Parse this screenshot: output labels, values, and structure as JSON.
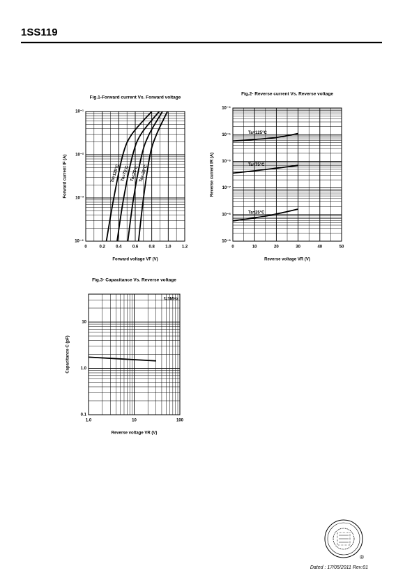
{
  "header": {
    "title": "1SS119"
  },
  "footer": {
    "date": "Dated : 17/05/2011   Rev:01",
    "mark": "®"
  },
  "chart_data": [
    {
      "type": "line",
      "title": "Fig.1-Forward current Vs. Forward voltage",
      "xlabel": "Forward voltage VF  (V)",
      "ylabel": "Forward current IF  (A)",
      "xscale": "linear",
      "yscale": "log",
      "grid": true,
      "xlim": [
        0,
        1.2
      ],
      "xticks": [
        0,
        0.2,
        0.4,
        0.6,
        0.8,
        {
          "value": 1,
          "label": "1.0"
        },
        1.2
      ],
      "ylim": [
        0.0001,
        0.1
      ],
      "yticks": [
        {
          "value": 0.0001,
          "label": "10⁻⁴"
        },
        {
          "value": 0.001,
          "label": "10⁻³"
        },
        {
          "value": 0.01,
          "label": "10⁻²"
        },
        {
          "value": 0.1,
          "label": "10⁻¹"
        }
      ],
      "series": [
        {
          "name": "Ta=125°C",
          "color": "#000000",
          "x": [
            0.25,
            0.34,
            0.45,
            0.56,
            0.8
          ],
          "values": [
            0.0001,
            0.001,
            0.01,
            0.03,
            0.1
          ]
        },
        {
          "name": "Ta=75°C",
          "color": "#000000",
          "x": [
            0.38,
            0.46,
            0.57,
            0.67,
            0.89
          ],
          "values": [
            0.0001,
            0.001,
            0.01,
            0.03,
            0.1
          ]
        },
        {
          "name": "Ta=25°C",
          "color": "#000000",
          "x": [
            0.51,
            0.58,
            0.68,
            0.77,
            0.93
          ],
          "values": [
            0.0001,
            0.001,
            0.01,
            0.03,
            0.1
          ]
        },
        {
          "name": "Ta=-25°C",
          "color": "#000000",
          "x": [
            0.64,
            0.7,
            0.78,
            0.86,
            0.99
          ],
          "values": [
            0.0001,
            0.001,
            0.01,
            0.03,
            0.1
          ]
        }
      ]
    },
    {
      "type": "line",
      "title": "Fig.2- Reverse current Vs. Reverse voltage",
      "xlabel": "Reverse voltage VR  (V)",
      "ylabel": "Reverse current IR  (A)",
      "xscale": "linear",
      "yscale": "log",
      "grid": true,
      "xlim": [
        0,
        50
      ],
      "xticks": [
        0,
        10,
        20,
        30,
        40,
        50
      ],
      "ylim": [
        1e-09,
        0.0001
      ],
      "yticks": [
        {
          "value": 1e-09,
          "label": "10⁻⁹"
        },
        {
          "value": 1e-08,
          "label": "10⁻⁸"
        },
        {
          "value": 1e-07,
          "label": "10⁻⁷"
        },
        {
          "value": 1e-06,
          "label": "10⁻⁶"
        },
        {
          "value": 1e-05,
          "label": "10⁻⁵"
        },
        {
          "value": 0.0001,
          "label": "10⁻⁴"
        }
      ],
      "series": [
        {
          "name": "Ta=125°C",
          "color": "#000000",
          "x": [
            0,
            10,
            20,
            30
          ],
          "values": [
            5.8e-06,
            6.6e-06,
            7.8e-06,
            1.1e-05
          ]
        },
        {
          "name": "Ta=75°C",
          "color": "#000000",
          "x": [
            0,
            10,
            20,
            30
          ],
          "values": [
            3.6e-07,
            4.4e-07,
            5.5e-07,
            7e-07
          ]
        },
        {
          "name": "Ta=25°C",
          "color": "#000000",
          "x": [
            0,
            10,
            20,
            30
          ],
          "values": [
            5.8e-09,
            7.5e-09,
            1.05e-08,
            1.6e-08
          ]
        }
      ]
    },
    {
      "type": "line",
      "title": "Fig.3- Capacitance Vs. Reverse voltage",
      "xlabel": "Reverse voltage VR  (V)",
      "ylabel": "Capacitance C  (pF)",
      "xscale": "log",
      "yscale": "log",
      "grid": true,
      "annotation": "f=1MHz",
      "xlim": [
        1,
        100
      ],
      "xticks": [
        {
          "value": 1,
          "label": "1.0"
        },
        10,
        100
      ],
      "ylim": [
        0.1,
        40
      ],
      "yticks": [
        0.1,
        {
          "value": 1,
          "label": "1.0"
        },
        10
      ],
      "series": [
        {
          "color": "#000000",
          "x": [
            1,
            30
          ],
          "values": [
            1.75,
            1.45
          ]
        }
      ]
    }
  ]
}
